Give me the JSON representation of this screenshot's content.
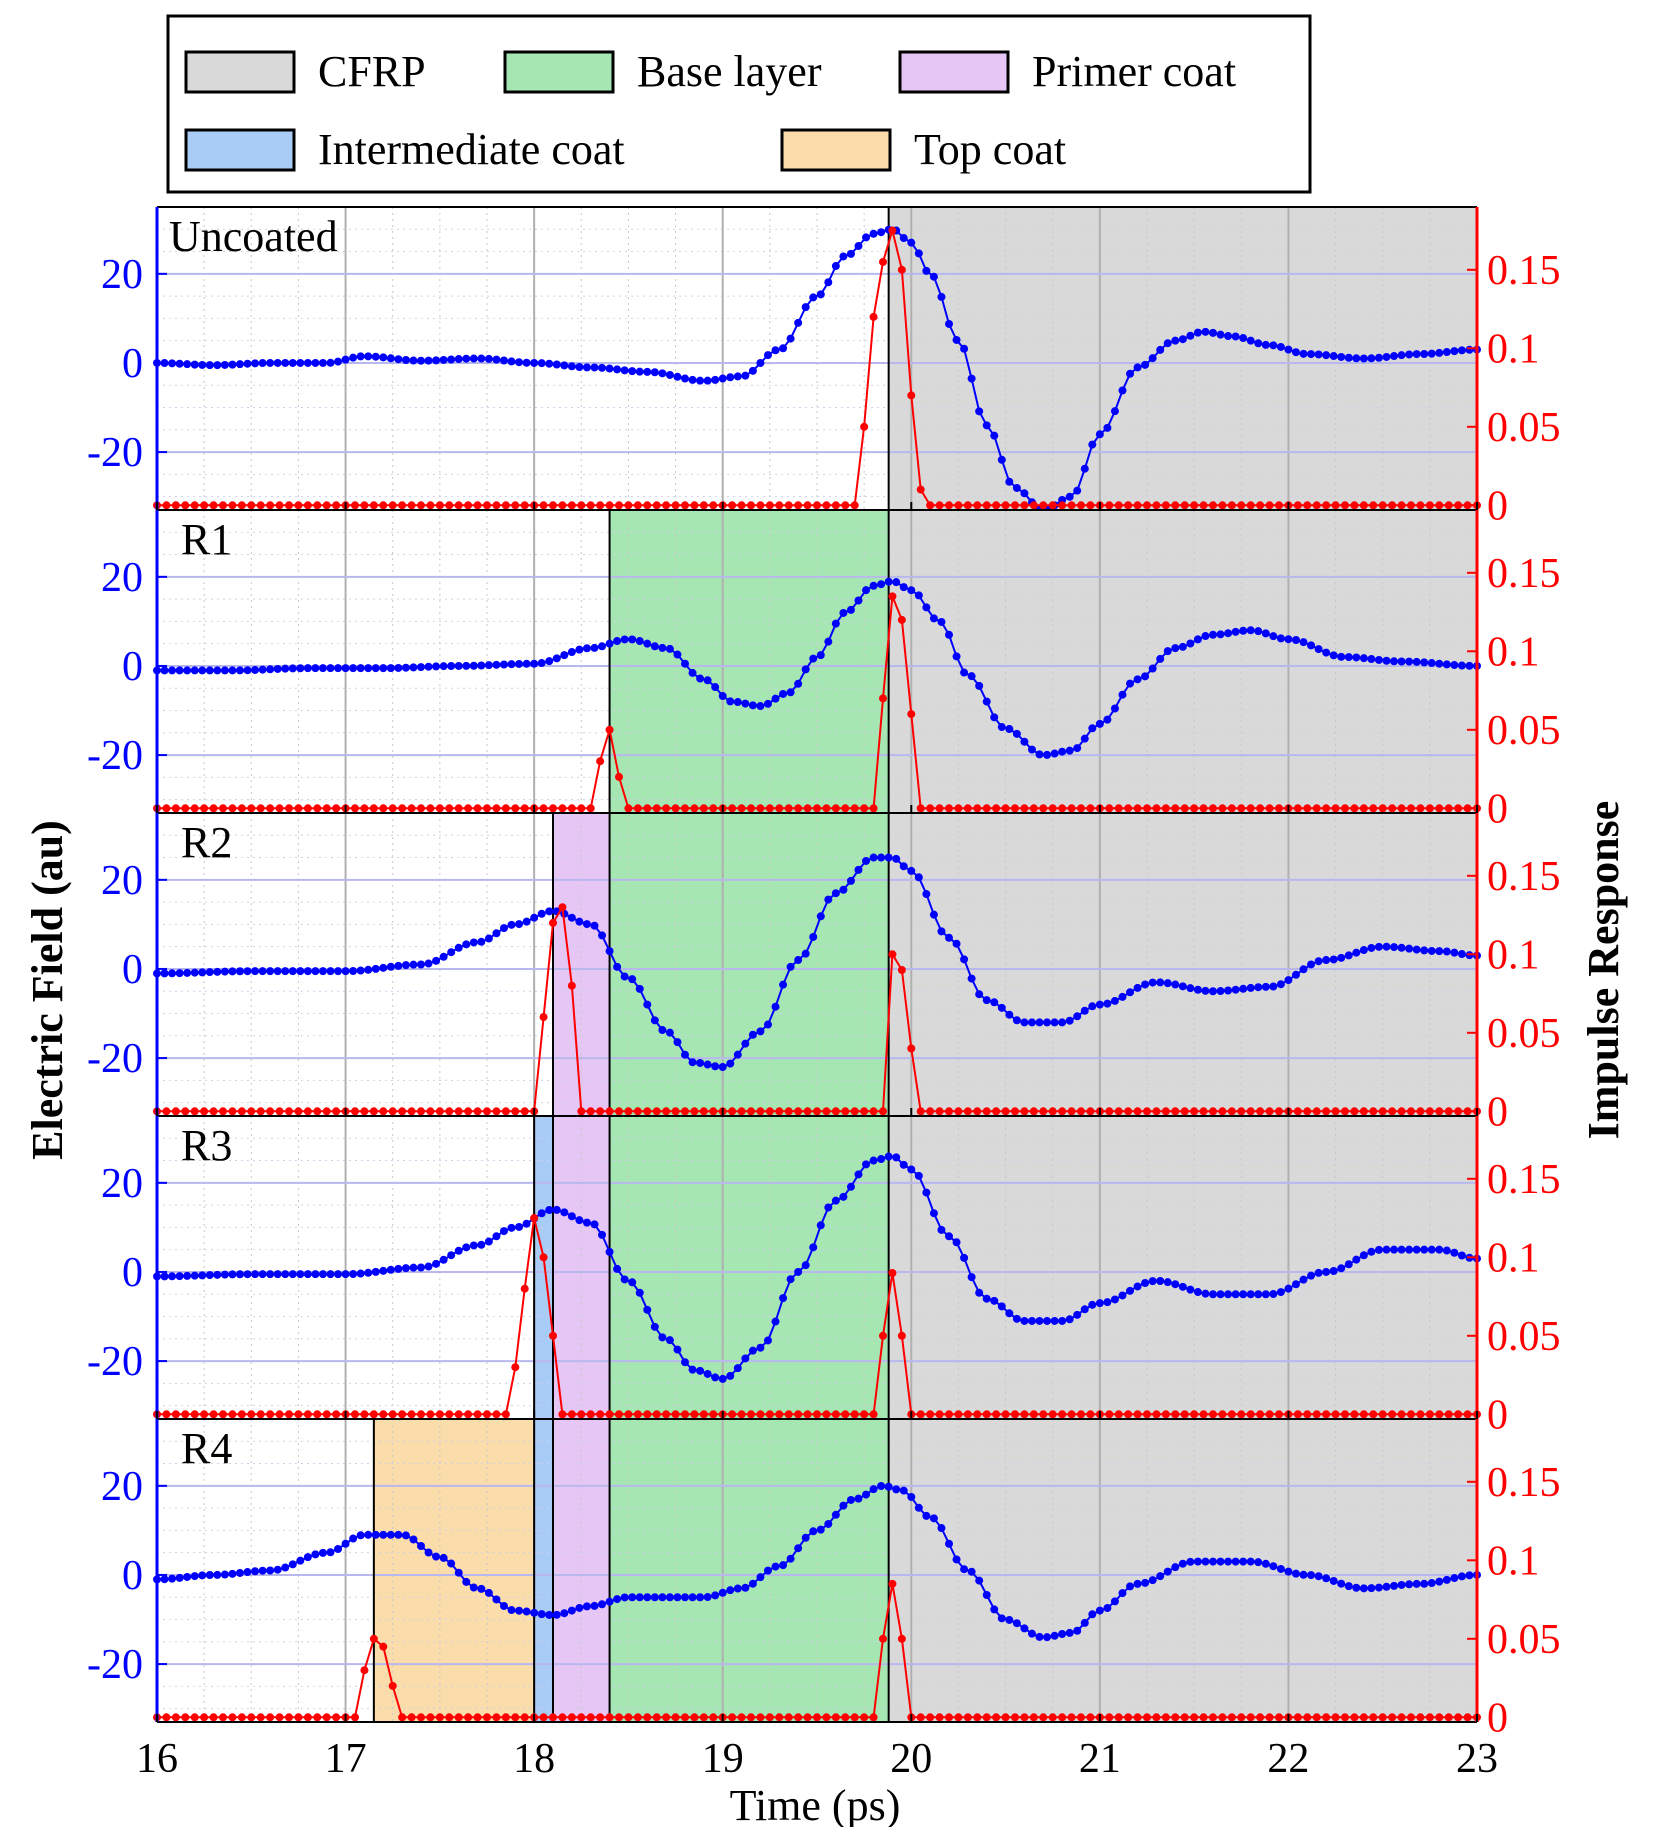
{
  "legend": {
    "items": [
      {
        "label": "CFRP",
        "color": "#d9d9d9"
      },
      {
        "label": "Base layer",
        "color": "#a6e6b3"
      },
      {
        "label": "Primer coat",
        "color": "#e5c6f5"
      },
      {
        "label": "Intermediate coat",
        "color": "#a8ccf5"
      },
      {
        "label": "Top coat",
        "color": "#fbdcab"
      }
    ]
  },
  "chart_data": {
    "type": "line",
    "xlabel": "Time (ps)",
    "ylabel_left": "Electric Field (au)",
    "ylabel_right": "Impulse Response",
    "left_color": "#0000ff",
    "right_color": "#ff0000",
    "xlim": [
      16,
      23
    ],
    "ylim_left": [
      -33,
      35
    ],
    "ylim_right": [
      -0.003,
      0.19
    ],
    "x_ticks": [
      "16",
      "17",
      "18",
      "19",
      "20",
      "21",
      "22",
      "23"
    ],
    "y_ticks_left": [
      "20",
      "0",
      "-20"
    ],
    "y_ticks_right": [
      "0.15",
      "0.1",
      "0.05",
      "0"
    ],
    "grid": true,
    "panels": [
      {
        "label": "Uncoated",
        "layers": [
          {
            "name": "CFRP",
            "x0": 19.88,
            "x1": 23
          }
        ],
        "electric_field": {
          "x": [
            16.0,
            16.3,
            16.6,
            16.9,
            17.1,
            17.4,
            17.7,
            18.0,
            18.3,
            18.6,
            18.9,
            19.1,
            19.3,
            19.5,
            19.65,
            19.8,
            19.9,
            20.0,
            20.1,
            20.25,
            20.4,
            20.55,
            20.7,
            20.85,
            21.0,
            21.2,
            21.4,
            21.55,
            21.7,
            21.9,
            22.1,
            22.4,
            22.7,
            23.0
          ],
          "y": [
            0,
            -0.5,
            0,
            0,
            1.5,
            0.5,
            1,
            0,
            -1,
            -2,
            -4,
            -3,
            3,
            15,
            24,
            29,
            30,
            27,
            20,
            5,
            -14,
            -28,
            -33,
            -30,
            -16,
            -1,
            5,
            7,
            6,
            4,
            2,
            1,
            2,
            3
          ]
        },
        "impulse_response": {
          "x": [
            16.0,
            19.7,
            19.75,
            19.8,
            19.85,
            19.9,
            19.95,
            20.0,
            20.05,
            20.1,
            23.0
          ],
          "y": [
            0,
            0,
            0.05,
            0.12,
            0.155,
            0.175,
            0.15,
            0.07,
            0.01,
            0,
            0
          ]
        }
      },
      {
        "label": "R1",
        "layers": [
          {
            "name": "Base layer",
            "x0": 18.4,
            "x1": 19.88
          },
          {
            "name": "CFRP",
            "x0": 19.88,
            "x1": 23
          }
        ],
        "electric_field": {
          "x": [
            16.0,
            16.4,
            16.8,
            17.2,
            17.6,
            18.0,
            18.3,
            18.5,
            18.7,
            18.9,
            19.05,
            19.2,
            19.35,
            19.5,
            19.65,
            19.8,
            19.9,
            20.0,
            20.15,
            20.3,
            20.5,
            20.7,
            20.85,
            21.0,
            21.2,
            21.4,
            21.6,
            21.8,
            22.0,
            22.3,
            22.6,
            23.0
          ],
          "y": [
            -1,
            -1,
            -0.5,
            -0.5,
            0,
            0.5,
            4,
            6,
            4,
            -3,
            -8,
            -9,
            -6,
            2,
            12,
            18,
            19,
            17,
            10,
            -2,
            -14,
            -20,
            -19,
            -13,
            -3,
            4,
            7,
            8,
            6,
            2,
            1,
            0
          ]
        },
        "impulse_response": {
          "x": [
            16.0,
            18.3,
            18.35,
            18.4,
            18.45,
            18.5,
            19.8,
            19.85,
            19.9,
            19.95,
            20.0,
            20.05,
            23.0
          ],
          "y": [
            0,
            0,
            0.03,
            0.05,
            0.02,
            0,
            0,
            0.07,
            0.135,
            0.12,
            0.06,
            0,
            0
          ]
        }
      },
      {
        "label": "R2",
        "layers": [
          {
            "name": "Primer coat",
            "x0": 18.1,
            "x1": 18.4
          },
          {
            "name": "Base layer",
            "x0": 18.4,
            "x1": 19.88
          },
          {
            "name": "CFRP",
            "x0": 19.88,
            "x1": 23
          }
        ],
        "electric_field": {
          "x": [
            16.0,
            16.5,
            17.0,
            17.4,
            17.7,
            17.9,
            18.1,
            18.3,
            18.5,
            18.7,
            18.85,
            19.0,
            19.2,
            19.4,
            19.6,
            19.8,
            19.9,
            20.0,
            20.2,
            20.4,
            20.6,
            20.8,
            21.0,
            21.3,
            21.6,
            21.9,
            22.2,
            22.5,
            22.8,
            23.0
          ],
          "y": [
            -1,
            -0.5,
            -0.5,
            1,
            6,
            10,
            13,
            10,
            -2,
            -14,
            -21,
            -22,
            -14,
            2,
            17,
            25,
            25,
            22,
            7,
            -7,
            -12,
            -12,
            -8,
            -3,
            -5,
            -4,
            2,
            5,
            4,
            3
          ]
        },
        "impulse_response": {
          "x": [
            16.0,
            18.0,
            18.05,
            18.1,
            18.15,
            18.2,
            18.25,
            19.85,
            19.9,
            19.95,
            20.0,
            20.05,
            23.0
          ],
          "y": [
            0,
            0,
            0.06,
            0.12,
            0.13,
            0.08,
            0,
            0,
            0.1,
            0.09,
            0.04,
            0,
            0
          ]
        }
      },
      {
        "label": "R3",
        "layers": [
          {
            "name": "Intermediate coat",
            "x0": 18.0,
            "x1": 18.1
          },
          {
            "name": "Primer coat",
            "x0": 18.1,
            "x1": 18.4
          },
          {
            "name": "Base layer",
            "x0": 18.4,
            "x1": 19.88
          },
          {
            "name": "CFRP",
            "x0": 19.88,
            "x1": 23
          }
        ],
        "electric_field": {
          "x": [
            16.0,
            16.5,
            17.0,
            17.4,
            17.7,
            17.9,
            18.1,
            18.3,
            18.5,
            18.7,
            18.85,
            19.0,
            19.2,
            19.4,
            19.6,
            19.8,
            19.9,
            20.0,
            20.2,
            20.4,
            20.6,
            20.8,
            21.0,
            21.3,
            21.6,
            21.9,
            22.2,
            22.5,
            22.8,
            23.0
          ],
          "y": [
            -1,
            -0.5,
            -0.5,
            1,
            6,
            10,
            14,
            11,
            -2,
            -15,
            -22,
            -24,
            -17,
            0,
            16,
            25,
            26,
            23,
            8,
            -6,
            -11,
            -11,
            -7,
            -2,
            -5,
            -5,
            0,
            5,
            5,
            3
          ]
        },
        "impulse_response": {
          "x": [
            16.0,
            17.85,
            17.9,
            17.95,
            18.0,
            18.05,
            18.1,
            18.15,
            19.8,
            19.85,
            19.9,
            19.95,
            20.0,
            23.0
          ],
          "y": [
            0,
            0,
            0.03,
            0.08,
            0.125,
            0.1,
            0.05,
            0,
            0,
            0.05,
            0.09,
            0.05,
            0,
            0
          ]
        }
      },
      {
        "label": "R4",
        "layers": [
          {
            "name": "Top coat",
            "x0": 17.15,
            "x1": 18.0
          },
          {
            "name": "Intermediate coat",
            "x0": 18.0,
            "x1": 18.1
          },
          {
            "name": "Primer coat",
            "x0": 18.1,
            "x1": 18.4
          },
          {
            "name": "Base layer",
            "x0": 18.4,
            "x1": 19.88
          },
          {
            "name": "CFRP",
            "x0": 19.88,
            "x1": 23
          }
        ],
        "electric_field": {
          "x": [
            16.0,
            16.3,
            16.6,
            16.9,
            17.1,
            17.3,
            17.5,
            17.7,
            17.9,
            18.1,
            18.3,
            18.5,
            18.7,
            18.9,
            19.1,
            19.3,
            19.5,
            19.7,
            19.85,
            19.95,
            20.1,
            20.3,
            20.5,
            20.7,
            20.85,
            21.0,
            21.2,
            21.5,
            21.8,
            22.1,
            22.4,
            22.7,
            23.0
          ],
          "y": [
            -1,
            0,
            1,
            5,
            9,
            9,
            4,
            -3,
            -8,
            -9,
            -7,
            -5,
            -5,
            -5,
            -3,
            2,
            10,
            17,
            20,
            19,
            13,
            1,
            -10,
            -14,
            -13,
            -8,
            -2,
            3,
            3,
            0,
            -3,
            -2,
            0
          ]
        },
        "impulse_response": {
          "x": [
            16.0,
            17.05,
            17.1,
            17.15,
            17.2,
            17.25,
            17.3,
            19.8,
            19.85,
            19.9,
            19.95,
            20.0,
            23.0
          ],
          "y": [
            0,
            0,
            0.03,
            0.05,
            0.045,
            0.02,
            0,
            0,
            0.05,
            0.085,
            0.05,
            0,
            0
          ]
        }
      }
    ]
  }
}
